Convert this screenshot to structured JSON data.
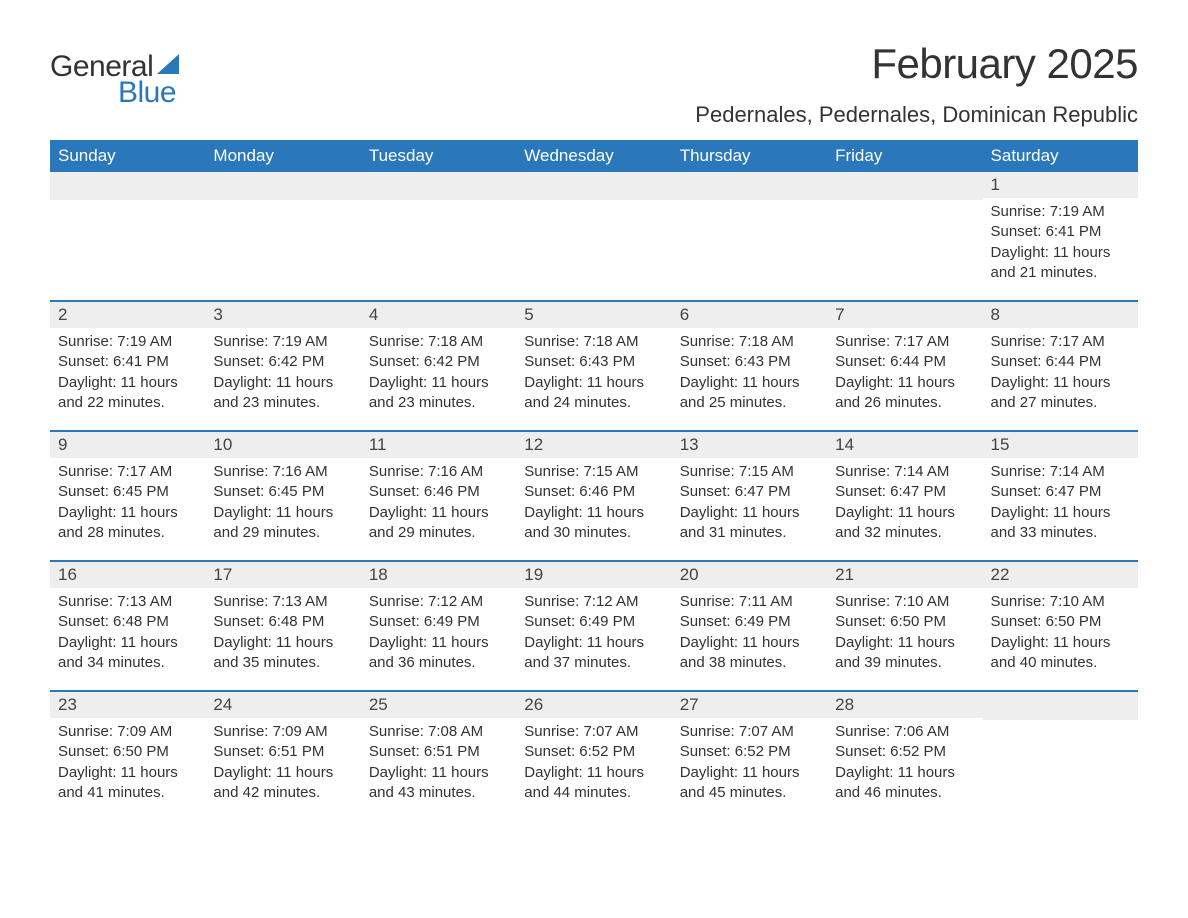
{
  "brand": {
    "line1": "General",
    "line2": "Blue",
    "accent_color": "#2a77bb"
  },
  "title": "February 2025",
  "location": "Pedernales, Pedernales, Dominican Republic",
  "colors": {
    "header_bg": "#2a77bb",
    "header_text": "#ffffff",
    "daynum_bg": "#eeeeee",
    "row_border": "#2a77bb",
    "body_text": "#333333"
  },
  "weekdays": [
    "Sunday",
    "Monday",
    "Tuesday",
    "Wednesday",
    "Thursday",
    "Friday",
    "Saturday"
  ],
  "cells": [
    {
      "day": "",
      "sunrise": "",
      "sunset": "",
      "daylight": ""
    },
    {
      "day": "",
      "sunrise": "",
      "sunset": "",
      "daylight": ""
    },
    {
      "day": "",
      "sunrise": "",
      "sunset": "",
      "daylight": ""
    },
    {
      "day": "",
      "sunrise": "",
      "sunset": "",
      "daylight": ""
    },
    {
      "day": "",
      "sunrise": "",
      "sunset": "",
      "daylight": ""
    },
    {
      "day": "",
      "sunrise": "",
      "sunset": "",
      "daylight": ""
    },
    {
      "day": "1",
      "sunrise": "Sunrise: 7:19 AM",
      "sunset": "Sunset: 6:41 PM",
      "daylight": "Daylight: 11 hours and 21 minutes."
    },
    {
      "day": "2",
      "sunrise": "Sunrise: 7:19 AM",
      "sunset": "Sunset: 6:41 PM",
      "daylight": "Daylight: 11 hours and 22 minutes."
    },
    {
      "day": "3",
      "sunrise": "Sunrise: 7:19 AM",
      "sunset": "Sunset: 6:42 PM",
      "daylight": "Daylight: 11 hours and 23 minutes."
    },
    {
      "day": "4",
      "sunrise": "Sunrise: 7:18 AM",
      "sunset": "Sunset: 6:42 PM",
      "daylight": "Daylight: 11 hours and 23 minutes."
    },
    {
      "day": "5",
      "sunrise": "Sunrise: 7:18 AM",
      "sunset": "Sunset: 6:43 PM",
      "daylight": "Daylight: 11 hours and 24 minutes."
    },
    {
      "day": "6",
      "sunrise": "Sunrise: 7:18 AM",
      "sunset": "Sunset: 6:43 PM",
      "daylight": "Daylight: 11 hours and 25 minutes."
    },
    {
      "day": "7",
      "sunrise": "Sunrise: 7:17 AM",
      "sunset": "Sunset: 6:44 PM",
      "daylight": "Daylight: 11 hours and 26 minutes."
    },
    {
      "day": "8",
      "sunrise": "Sunrise: 7:17 AM",
      "sunset": "Sunset: 6:44 PM",
      "daylight": "Daylight: 11 hours and 27 minutes."
    },
    {
      "day": "9",
      "sunrise": "Sunrise: 7:17 AM",
      "sunset": "Sunset: 6:45 PM",
      "daylight": "Daylight: 11 hours and 28 minutes."
    },
    {
      "day": "10",
      "sunrise": "Sunrise: 7:16 AM",
      "sunset": "Sunset: 6:45 PM",
      "daylight": "Daylight: 11 hours and 29 minutes."
    },
    {
      "day": "11",
      "sunrise": "Sunrise: 7:16 AM",
      "sunset": "Sunset: 6:46 PM",
      "daylight": "Daylight: 11 hours and 29 minutes."
    },
    {
      "day": "12",
      "sunrise": "Sunrise: 7:15 AM",
      "sunset": "Sunset: 6:46 PM",
      "daylight": "Daylight: 11 hours and 30 minutes."
    },
    {
      "day": "13",
      "sunrise": "Sunrise: 7:15 AM",
      "sunset": "Sunset: 6:47 PM",
      "daylight": "Daylight: 11 hours and 31 minutes."
    },
    {
      "day": "14",
      "sunrise": "Sunrise: 7:14 AM",
      "sunset": "Sunset: 6:47 PM",
      "daylight": "Daylight: 11 hours and 32 minutes."
    },
    {
      "day": "15",
      "sunrise": "Sunrise: 7:14 AM",
      "sunset": "Sunset: 6:47 PM",
      "daylight": "Daylight: 11 hours and 33 minutes."
    },
    {
      "day": "16",
      "sunrise": "Sunrise: 7:13 AM",
      "sunset": "Sunset: 6:48 PM",
      "daylight": "Daylight: 11 hours and 34 minutes."
    },
    {
      "day": "17",
      "sunrise": "Sunrise: 7:13 AM",
      "sunset": "Sunset: 6:48 PM",
      "daylight": "Daylight: 11 hours and 35 minutes."
    },
    {
      "day": "18",
      "sunrise": "Sunrise: 7:12 AM",
      "sunset": "Sunset: 6:49 PM",
      "daylight": "Daylight: 11 hours and 36 minutes."
    },
    {
      "day": "19",
      "sunrise": "Sunrise: 7:12 AM",
      "sunset": "Sunset: 6:49 PM",
      "daylight": "Daylight: 11 hours and 37 minutes."
    },
    {
      "day": "20",
      "sunrise": "Sunrise: 7:11 AM",
      "sunset": "Sunset: 6:49 PM",
      "daylight": "Daylight: 11 hours and 38 minutes."
    },
    {
      "day": "21",
      "sunrise": "Sunrise: 7:10 AM",
      "sunset": "Sunset: 6:50 PM",
      "daylight": "Daylight: 11 hours and 39 minutes."
    },
    {
      "day": "22",
      "sunrise": "Sunrise: 7:10 AM",
      "sunset": "Sunset: 6:50 PM",
      "daylight": "Daylight: 11 hours and 40 minutes."
    },
    {
      "day": "23",
      "sunrise": "Sunrise: 7:09 AM",
      "sunset": "Sunset: 6:50 PM",
      "daylight": "Daylight: 11 hours and 41 minutes."
    },
    {
      "day": "24",
      "sunrise": "Sunrise: 7:09 AM",
      "sunset": "Sunset: 6:51 PM",
      "daylight": "Daylight: 11 hours and 42 minutes."
    },
    {
      "day": "25",
      "sunrise": "Sunrise: 7:08 AM",
      "sunset": "Sunset: 6:51 PM",
      "daylight": "Daylight: 11 hours and 43 minutes."
    },
    {
      "day": "26",
      "sunrise": "Sunrise: 7:07 AM",
      "sunset": "Sunset: 6:52 PM",
      "daylight": "Daylight: 11 hours and 44 minutes."
    },
    {
      "day": "27",
      "sunrise": "Sunrise: 7:07 AM",
      "sunset": "Sunset: 6:52 PM",
      "daylight": "Daylight: 11 hours and 45 minutes."
    },
    {
      "day": "28",
      "sunrise": "Sunrise: 7:06 AM",
      "sunset": "Sunset: 6:52 PM",
      "daylight": "Daylight: 11 hours and 46 minutes."
    },
    {
      "day": "",
      "sunrise": "",
      "sunset": "",
      "daylight": ""
    }
  ]
}
